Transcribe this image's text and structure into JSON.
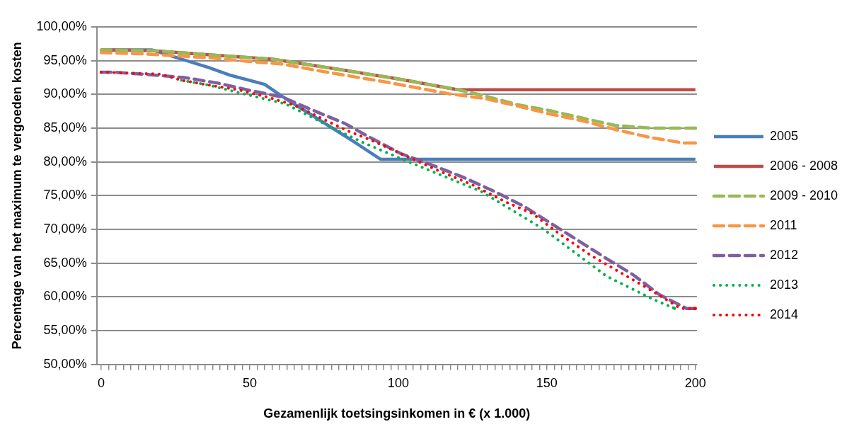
{
  "chart_data": {
    "type": "line",
    "xlabel": "Gezamenlijk toetsingsinkomen in € (x 1.000)",
    "ylabel": "Percentage van het maximum te vergoeden kosten",
    "xlim": [
      -1.5,
      200.5
    ],
    "xticks": [
      0,
      {
        "value": 2.5,
        "label": null
      },
      {
        "value": 5,
        "label": null
      },
      {
        "value": 7.5,
        "label": null
      },
      {
        "value": 10,
        "label": null
      },
      {
        "value": 12.5,
        "label": null
      },
      {
        "value": 15,
        "label": null
      },
      {
        "value": 17.5,
        "label": null
      },
      {
        "value": 20,
        "label": null
      },
      {
        "value": 22.5,
        "label": null
      },
      {
        "value": 25,
        "label": null
      },
      {
        "value": 27.5,
        "label": null
      },
      {
        "value": 30,
        "label": null
      },
      {
        "value": 32.5,
        "label": null
      },
      {
        "value": 35,
        "label": null
      },
      {
        "value": 37.5,
        "label": null
      },
      {
        "value": 40,
        "label": null
      },
      {
        "value": 42.5,
        "label": null
      },
      {
        "value": 45,
        "label": null
      },
      {
        "value": 47.5,
        "label": null
      },
      50,
      {
        "value": 52.5,
        "label": null
      },
      {
        "value": 55,
        "label": null
      },
      {
        "value": 57.5,
        "label": null
      },
      {
        "value": 60,
        "label": null
      },
      {
        "value": 62.5,
        "label": null
      },
      {
        "value": 65,
        "label": null
      },
      {
        "value": 67.5,
        "label": null
      },
      {
        "value": 70,
        "label": null
      },
      {
        "value": 72.5,
        "label": null
      },
      {
        "value": 75,
        "label": null
      },
      {
        "value": 77.5,
        "label": null
      },
      {
        "value": 80,
        "label": null
      },
      {
        "value": 82.5,
        "label": null
      },
      {
        "value": 85,
        "label": null
      },
      {
        "value": 87.5,
        "label": null
      },
      {
        "value": 90,
        "label": null
      },
      {
        "value": 92.5,
        "label": null
      },
      {
        "value": 95,
        "label": null
      },
      {
        "value": 97.5,
        "label": null
      },
      100,
      {
        "value": 102.5,
        "label": null
      },
      {
        "value": 105,
        "label": null
      },
      {
        "value": 107.5,
        "label": null
      },
      {
        "value": 110,
        "label": null
      },
      {
        "value": 112.5,
        "label": null
      },
      {
        "value": 115,
        "label": null
      },
      {
        "value": 117.5,
        "label": null
      },
      {
        "value": 120,
        "label": null
      },
      {
        "value": 122.5,
        "label": null
      },
      {
        "value": 125,
        "label": null
      },
      {
        "value": 127.5,
        "label": null
      },
      {
        "value": 130,
        "label": null
      },
      {
        "value": 132.5,
        "label": null
      },
      {
        "value": 135,
        "label": null
      },
      {
        "value": 137.5,
        "label": null
      },
      {
        "value": 140,
        "label": null
      },
      {
        "value": 142.5,
        "label": null
      },
      {
        "value": 145,
        "label": null
      },
      {
        "value": 147.5,
        "label": null
      },
      150,
      {
        "value": 152.5,
        "label": null
      },
      {
        "value": 155,
        "label": null
      },
      {
        "value": 157.5,
        "label": null
      },
      {
        "value": 160,
        "label": null
      },
      {
        "value": 162.5,
        "label": null
      },
      {
        "value": 165,
        "label": null
      },
      {
        "value": 167.5,
        "label": null
      },
      {
        "value": 170,
        "label": null
      },
      {
        "value": 172.5,
        "label": null
      },
      {
        "value": 175,
        "label": null
      },
      {
        "value": 177.5,
        "label": null
      },
      {
        "value": 180,
        "label": null
      },
      {
        "value": 182.5,
        "label": null
      },
      {
        "value": 185,
        "label": null
      },
      {
        "value": 187.5,
        "label": null
      },
      {
        "value": 190,
        "label": null
      },
      {
        "value": 192.5,
        "label": null
      },
      {
        "value": 195,
        "label": null
      },
      {
        "value": 197.5,
        "label": null
      },
      200
    ],
    "ylim": [
      50,
      100
    ],
    "yticks": [
      {
        "value": 50,
        "label": "50,00%"
      },
      {
        "value": 55,
        "label": "55,00%"
      },
      {
        "value": 60,
        "label": "60,00%"
      },
      {
        "value": 65,
        "label": "65,00%"
      },
      {
        "value": 70,
        "label": "70,00%"
      },
      {
        "value": 75,
        "label": "75,00%"
      },
      {
        "value": 80,
        "label": "80,00%"
      },
      {
        "value": 85,
        "label": "85,00%"
      },
      {
        "value": 90,
        "label": "90,00%"
      },
      {
        "value": 95,
        "label": "95,00%"
      },
      {
        "value": 100,
        "label": "100,00%"
      }
    ],
    "grid": "y",
    "legend": "right",
    "marker": "none",
    "series": [
      {
        "name": "2005",
        "color": "#4a7ebb",
        "line_style": "solid",
        "x": [
          0,
          17,
          36,
          43,
          55,
          62,
          84,
          94,
          200
        ],
        "values": [
          96.6,
          96.6,
          94.0,
          92.9,
          91.5,
          89.4,
          83.3,
          80.4,
          80.4
        ]
      },
      {
        "name": "2006 - 2008",
        "color": "#be4b48",
        "line_style": "solid",
        "x": [
          0,
          17,
          35,
          58,
          80,
          100,
          120,
          200
        ],
        "values": [
          96.6,
          96.5,
          95.9,
          95.2,
          93.7,
          92.3,
          90.7,
          90.7
        ]
      },
      {
        "name": "2009 - 2010",
        "color": "#98b954",
        "line_style": "dashed",
        "x": [
          0,
          17,
          35,
          58,
          80,
          100,
          120,
          128,
          140,
          151,
          162,
          173,
          185,
          200
        ],
        "values": [
          96.6,
          96.5,
          95.9,
          95.2,
          93.7,
          92.3,
          90.7,
          89.9,
          88.5,
          87.6,
          86.5,
          85.4,
          85.0,
          85.0
        ]
      },
      {
        "name": "2011",
        "color": "#f79646",
        "line_style": "dashed",
        "x": [
          0,
          14,
          26,
          37,
          49,
          61,
          72,
          84,
          95,
          106,
          117,
          129,
          140,
          151,
          162,
          173,
          185,
          196,
          200
        ],
        "values": [
          96.2,
          96.0,
          95.7,
          95.4,
          94.9,
          94.5,
          93.6,
          92.7,
          91.9,
          91.0,
          90.1,
          89.4,
          88.3,
          87.1,
          86.1,
          84.8,
          83.6,
          82.8,
          82.8
        ]
      },
      {
        "name": "2012",
        "color": "#7d60a0",
        "line_style": "dashed",
        "x": [
          0,
          4,
          14,
          28,
          39,
          50,
          61,
          71,
          82,
          91,
          101,
          111,
          122,
          132,
          142,
          151,
          160,
          170,
          179,
          188,
          197,
          200
        ],
        "values": [
          93.3,
          93.3,
          93.0,
          92.5,
          91.7,
          90.6,
          89.6,
          87.7,
          85.7,
          83.5,
          81.2,
          79.6,
          77.7,
          75.7,
          73.5,
          71.0,
          68.5,
          65.7,
          63.3,
          60.3,
          58.3,
          58.3
        ]
      },
      {
        "name": "2013",
        "color": "#00b050",
        "line_style": "dotted",
        "x": [
          27,
          36,
          46,
          62,
          71,
          79,
          88,
          103,
          128,
          149,
          170,
          186,
          193
        ],
        "values": [
          92.1,
          91.4,
          90.3,
          88.6,
          86.6,
          84.8,
          82.9,
          80.1,
          75.6,
          70.0,
          63.1,
          59.6,
          58.3
        ]
      },
      {
        "name": "2014",
        "color": "#ff0000",
        "line_style": "dotted",
        "x": [
          0,
          20,
          27,
          36,
          46,
          56,
          65,
          74,
          83,
          91,
          104,
          113,
          125,
          136,
          145,
          155,
          165,
          176,
          185,
          195,
          200
        ],
        "values": [
          93.3,
          93.0,
          92.1,
          91.4,
          90.7,
          89.6,
          88.4,
          86.5,
          84.6,
          83.2,
          80.6,
          78.8,
          76.6,
          74.1,
          72.4,
          69.1,
          66.1,
          63.3,
          61.0,
          58.3,
          58.3
        ]
      }
    ]
  }
}
